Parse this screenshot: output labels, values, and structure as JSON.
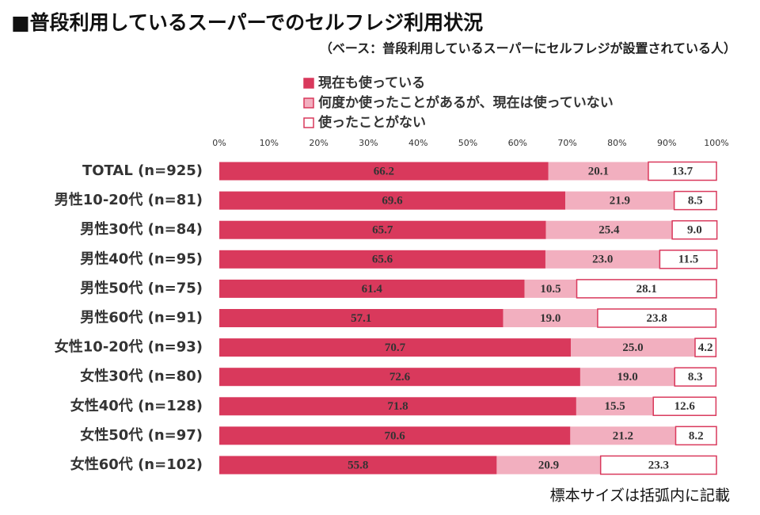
{
  "chart_data": {
    "type": "stacked-barh",
    "title": "■普段利用しているスーパーでのセルフレジ利用状況",
    "subtitle": "（ベース：普段利用しているスーパーにセルフレジが設置されている人）",
    "note": "標本サイズは括弧内に記載",
    "categories": [
      "TOTAL (n=925)",
      "男性10-20代 (n=81)",
      "男性30代 (n=84)",
      "男性40代 (n=95)",
      "男性50代 (n=75)",
      "男性60代 (n=91)",
      "女性10-20代 (n=93)",
      "女性30代 (n=80)",
      "女性40代 (n=128)",
      "女性50代 (n=97)",
      "女性60代 (n=102)"
    ],
    "series": [
      {
        "name": "現在も使っている",
        "color": "#d9395c",
        "values": [
          66.2,
          69.6,
          65.7,
          65.6,
          61.4,
          57.1,
          70.7,
          72.6,
          71.8,
          70.6,
          55.8
        ],
        "value_labels": [
          "66.2",
          "69.6",
          "65.7",
          "65.6",
          "61.4",
          "57.1",
          "70.7",
          "72.6",
          "71.8",
          "70.6",
          "55.8"
        ]
      },
      {
        "name": "何度か使ったことがあるが、現在は使っていない",
        "color": "#f2afbf",
        "values": [
          20.1,
          21.9,
          25.4,
          23.0,
          10.5,
          19.0,
          25.0,
          19.0,
          15.5,
          21.2,
          20.9
        ],
        "value_labels": [
          "20.1",
          "21.9",
          "25.4",
          "23.0",
          "10.5",
          "19.0",
          "25.0",
          "19.0",
          "15.5",
          "21.2",
          "20.9"
        ]
      },
      {
        "name": "使ったことがない",
        "color": "#ffffff",
        "values": [
          13.7,
          8.5,
          9.0,
          11.5,
          28.1,
          23.8,
          4.2,
          8.3,
          12.6,
          8.2,
          23.3
        ],
        "value_labels": [
          "13.7",
          "8.5",
          "9.0",
          "11.5",
          "28.1",
          "23.8",
          "4.2",
          "8.3",
          "12.6",
          "8.2",
          "23.3"
        ]
      }
    ],
    "xlim": [
      0,
      100
    ],
    "xticks": [
      {
        "value": 0,
        "label": "0%"
      },
      {
        "value": 10,
        "label": "10%"
      },
      {
        "value": 20,
        "label": "20%"
      },
      {
        "value": 30,
        "label": "30%"
      },
      {
        "value": 40,
        "label": "40%"
      },
      {
        "value": 50,
        "label": "50%"
      },
      {
        "value": 60,
        "label": "60%"
      },
      {
        "value": 70,
        "label": "70%"
      },
      {
        "value": 80,
        "label": "80%"
      },
      {
        "value": 90,
        "label": "90%"
      },
      {
        "value": 100,
        "label": "100%"
      }
    ]
  }
}
